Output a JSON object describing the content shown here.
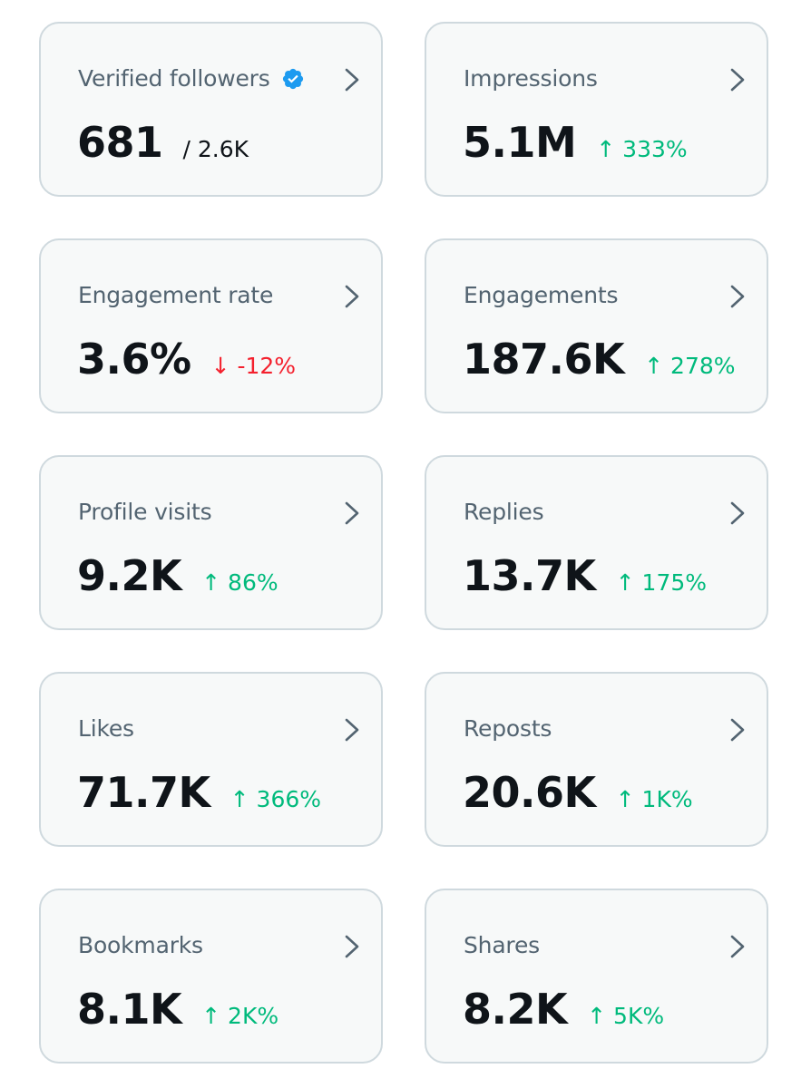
{
  "colors": {
    "up": "#00ba7c",
    "down": "#f4212e",
    "verified": "#1d9bf0"
  },
  "cards": [
    {
      "title": "Verified followers",
      "value": "681",
      "total": "/ 2.6K",
      "badge_icon": "verified-badge-icon"
    },
    {
      "title": "Impressions",
      "value": "5.1M",
      "change": "↑ 333%",
      "direction": "up"
    },
    {
      "title": "Engagement rate",
      "value": "3.6%",
      "change": "↓ -12%",
      "direction": "down"
    },
    {
      "title": "Engagements",
      "value": "187.6K",
      "change": "↑ 278%",
      "direction": "up"
    },
    {
      "title": "Profile visits",
      "value": "9.2K",
      "change": "↑ 86%",
      "direction": "up"
    },
    {
      "title": "Replies",
      "value": "13.7K",
      "change": "↑ 175%",
      "direction": "up"
    },
    {
      "title": "Likes",
      "value": "71.7K",
      "change": "↑ 366%",
      "direction": "up"
    },
    {
      "title": "Reposts",
      "value": "20.6K",
      "change": "↑ 1K%",
      "direction": "up"
    },
    {
      "title": "Bookmarks",
      "value": "8.1K",
      "change": "↑ 2K%",
      "direction": "up"
    },
    {
      "title": "Shares",
      "value": "8.2K",
      "change": "↑ 5K%",
      "direction": "up"
    }
  ]
}
